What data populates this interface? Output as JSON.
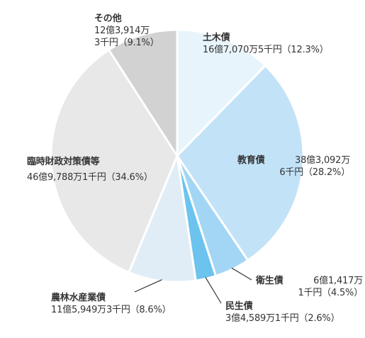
{
  "chart_data": {
    "type": "pie",
    "title": "",
    "slices": [
      {
        "name": "土木債",
        "value": 12.3,
        "amount_line1": "16億7,070万5千円（12.3%）",
        "amount_line2": "",
        "color": "#e8f4fc"
      },
      {
        "name": "教育債",
        "value": 28.2,
        "amount_line1": "38億3,092万",
        "amount_line2": "6千円（28.2%）",
        "color": "#c2e2f8"
      },
      {
        "name": "衛生債",
        "value": 4.5,
        "amount_line1": "6億1,417万",
        "amount_line2": "1千円（4.5%）",
        "color": "#a3d6f4"
      },
      {
        "name": "民生債",
        "value": 2.6,
        "amount_line1": "3億4,589万1千円（2.6%）",
        "amount_line2": "",
        "color": "#6cc3ee"
      },
      {
        "name": "農林水産業債",
        "value": 8.6,
        "amount_line1": "11億5,949万3千円（8.6%）",
        "amount_line2": "",
        "color": "#e0edf6"
      },
      {
        "name": "臨時財政対策債等",
        "value": 34.6,
        "amount_line1": "46億9,788万1千円（34.6%）",
        "amount_line2": "",
        "color": "#e8e8e8"
      },
      {
        "name": "その他",
        "value": 9.1,
        "amount_line1": "12億3,914万",
        "amount_line2": "3千円（9.1%）",
        "color": "#d2d2d2"
      }
    ],
    "colors": {
      "separator": "#ffffff",
      "leader_line": "#333333"
    }
  }
}
